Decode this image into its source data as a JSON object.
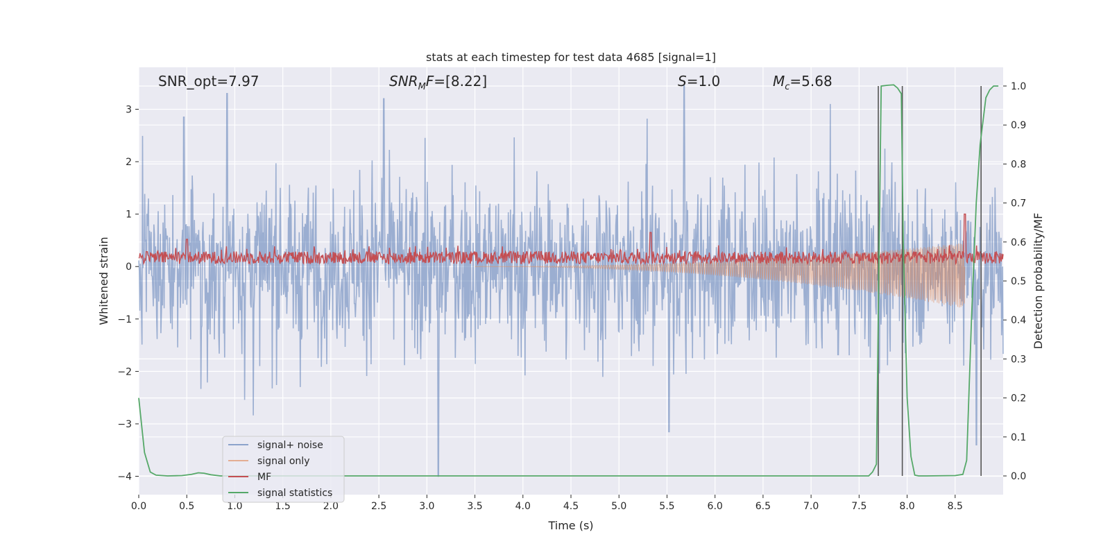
{
  "chart_data": {
    "type": "line",
    "title": "stats at each timestep for test data 4685 [signal=1]",
    "xlabel": "Time (s)",
    "ylabel": "Whitened strain",
    "y2label": "Detection probability/MF",
    "xlim": [
      0,
      9.0
    ],
    "ylim": [
      -4.35,
      3.8
    ],
    "y2lim": [
      -0.048,
      1.048
    ],
    "xticks": [
      0,
      0.5,
      1,
      1.5,
      2,
      2.5,
      3,
      3.5,
      4,
      4.5,
      5,
      5.5,
      6,
      6.5,
      7,
      7.5,
      8,
      8.5
    ],
    "xtick_labels": [
      "0.0",
      "0.5",
      "1.0",
      "1.5",
      "2.0",
      "2.5",
      "3.0",
      "3.5",
      "4.0",
      "4.5",
      "5.0",
      "5.5",
      "6.0",
      "6.5",
      "7.0",
      "7.5",
      "8.0",
      "8.5"
    ],
    "yticks": [
      3,
      2,
      1,
      0,
      -1,
      -2,
      -3,
      -4
    ],
    "ytick_labels": [
      "3",
      "2",
      "1",
      "0",
      "−1",
      "−2",
      "−3",
      "−4"
    ],
    "y2ticks": [
      1.0,
      0.9,
      0.8,
      0.7,
      0.6,
      0.5,
      0.4,
      0.3,
      0.2,
      0.1,
      0.0
    ],
    "y2tick_labels": [
      "1.0",
      "0.9",
      "0.8",
      "0.7",
      "0.6",
      "0.5",
      "0.4",
      "0.3",
      "0.2",
      "0.1",
      "0.0"
    ],
    "annotations": {
      "snr_opt": "SNR_opt=7.97",
      "snr_mf_main": "SNR",
      "snr_mf_sub": "M",
      "snr_mf_f": "F",
      "snr_mf_val": "=[8.22]",
      "s_sym": "S",
      "s_val": "=1.0",
      "mc_sym": "M",
      "mc_sub": "c",
      "mc_val": "=5.68"
    },
    "legend": {
      "placement": "lower-left",
      "entries": [
        {
          "label": "signal+ noise",
          "color": "#4C72B0"
        },
        {
          "label": "signal only",
          "color": "#DD8452"
        },
        {
          "label": "MF",
          "color": "#C44E52"
        },
        {
          "label": "signal statistics",
          "color": "#55A868"
        }
      ]
    },
    "series": [
      {
        "name": "signal+ noise",
        "kind": "noise",
        "color": "#4C72B0",
        "opacity": 0.5,
        "amplitude": 1.0,
        "spikes": [
          [
            0.47,
            2.85
          ],
          [
            0.92,
            3.3
          ],
          [
            2.55,
            3.2
          ],
          [
            3.12,
            -4.0
          ],
          [
            5.68,
            3.45
          ],
          [
            5.52,
            -3.15
          ],
          [
            7.2,
            3.1
          ],
          [
            8.72,
            -3.4
          ]
        ]
      },
      {
        "name": "signal only",
        "kind": "chirp",
        "color": "#DD8452",
        "opacity": 0.55,
        "start_t": 3.5,
        "end_t": 8.6,
        "end_amp_pos": 0.45,
        "end_amp_neg": -0.8
      },
      {
        "name": "MF",
        "kind": "mf",
        "color": "#C44E52",
        "base": 0.17,
        "amp": 0.12,
        "peaks": [
          [
            0.5,
            0.52
          ],
          [
            5.33,
            0.65
          ],
          [
            8.6,
            1.0
          ]
        ]
      },
      {
        "name": "signal statistics",
        "kind": "stat",
        "color": "#55A868",
        "axis": "right",
        "x": [
          0.0,
          0.06,
          0.12,
          0.18,
          0.3,
          0.45,
          0.55,
          0.62,
          0.68,
          0.75,
          0.85,
          1.0,
          7.6,
          7.64,
          7.68,
          7.73,
          7.8,
          7.86,
          7.9,
          7.94,
          7.96,
          8.0,
          8.04,
          8.08,
          8.12,
          8.2,
          8.5,
          8.58,
          8.62,
          8.67,
          8.72,
          8.76,
          8.82,
          8.86,
          8.9,
          8.95
        ],
        "y": [
          0.2,
          0.06,
          0.01,
          0.002,
          0.0,
          0.001,
          0.004,
          0.008,
          0.007,
          0.003,
          0.0,
          0.0,
          0.0,
          0.01,
          0.03,
          1.0,
          1.002,
          1.003,
          0.995,
          0.98,
          0.6,
          0.2,
          0.05,
          0.002,
          0.0,
          0.0,
          0.001,
          0.004,
          0.04,
          0.4,
          0.7,
          0.85,
          0.97,
          0.99,
          1.0,
          1.0
        ]
      },
      {
        "name": "markers",
        "kind": "vlines",
        "color": "#555555",
        "x": [
          7.7,
          7.95,
          8.77
        ],
        "y_top": 1.0,
        "y_bottom": 0.0
      }
    ]
  }
}
